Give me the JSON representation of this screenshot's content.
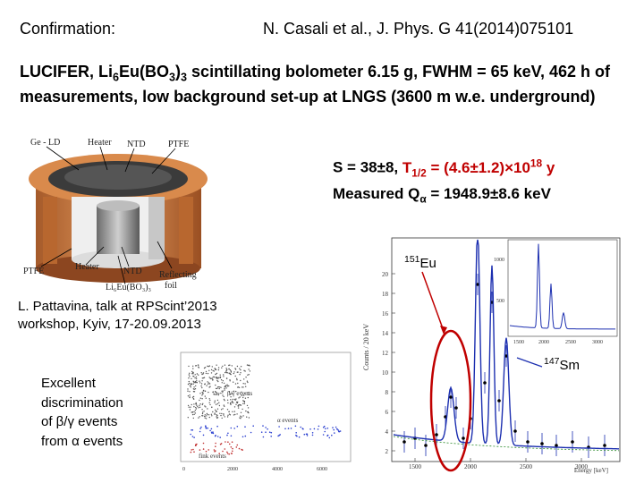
{
  "header": {
    "left_label": "Confirmation:",
    "reference": "N. Casali et al., J. Phys. G 41(2014)075101"
  },
  "intro": {
    "p_part1": "LUCIFER, Li",
    "p_sub1": "6",
    "p_part2": "Eu(BO",
    "p_sub2": "3",
    "p_part3": ")",
    "p_sub3": "3",
    "p_part4": " scintillating bolometer 6.15 g, FWHM = 65 keV, 462 h of measurements, low background set-up at LNGS (3600 m w.e. underground)"
  },
  "result": {
    "s_text": "S = 38±8, ",
    "t_text": "T",
    "t_sub": "1/2",
    "t_value": " = (4.6±1.2)×10",
    "t_exp": "18",
    "t_unit": " y",
    "q_text": "Measured Q",
    "q_sub": "α",
    "q_value": " = 1948.9±8.6 keV"
  },
  "detector_labels": {
    "ge_ld": "Ge - LD",
    "heater_top": "Heater",
    "ntd_top": "NTD",
    "ptfe_top": "PTFE",
    "ptfe_bottom": "PTFE",
    "heater_bottom": "Heater",
    "ntd_bottom": "NTD",
    "reflecting": "Reflecting",
    "foil": "foil",
    "crystal": "Li₆Eu(BO₃)₃"
  },
  "talk": {
    "line1": "L. Pattavina, talk at RPScint’2013",
    "line2": "workshop, Kyiv, 17-20.09.2013"
  },
  "discrimination": {
    "line1": "Excellent",
    "line2": "discrimination",
    "line3": "of β/γ events",
    "line4": "from α events"
  },
  "scatter_labels": {
    "beta_gamma": "β/γ events",
    "alpha": "α events",
    "fink": "fink events",
    "x_ticks": [
      "0",
      "2000",
      "4000",
      "6000"
    ]
  },
  "spectrum": {
    "eu_label": "Eu",
    "eu_mass": "151",
    "sm_label": "Sm",
    "sm_mass": "147",
    "ylabel": "Counts / 20 keV",
    "xlabel": "Energy [keV]",
    "y_ticks": [
      "2",
      "4",
      "6",
      "8",
      "10",
      "12",
      "14",
      "16",
      "18",
      "20"
    ],
    "x_ticks": [
      "1500",
      "2000",
      "2500",
      "3000"
    ],
    "inset_y_ticks": [
      "500",
      "1000"
    ],
    "inset_x_ticks": [
      "1500",
      "2000",
      "2500",
      "3000"
    ]
  }
}
